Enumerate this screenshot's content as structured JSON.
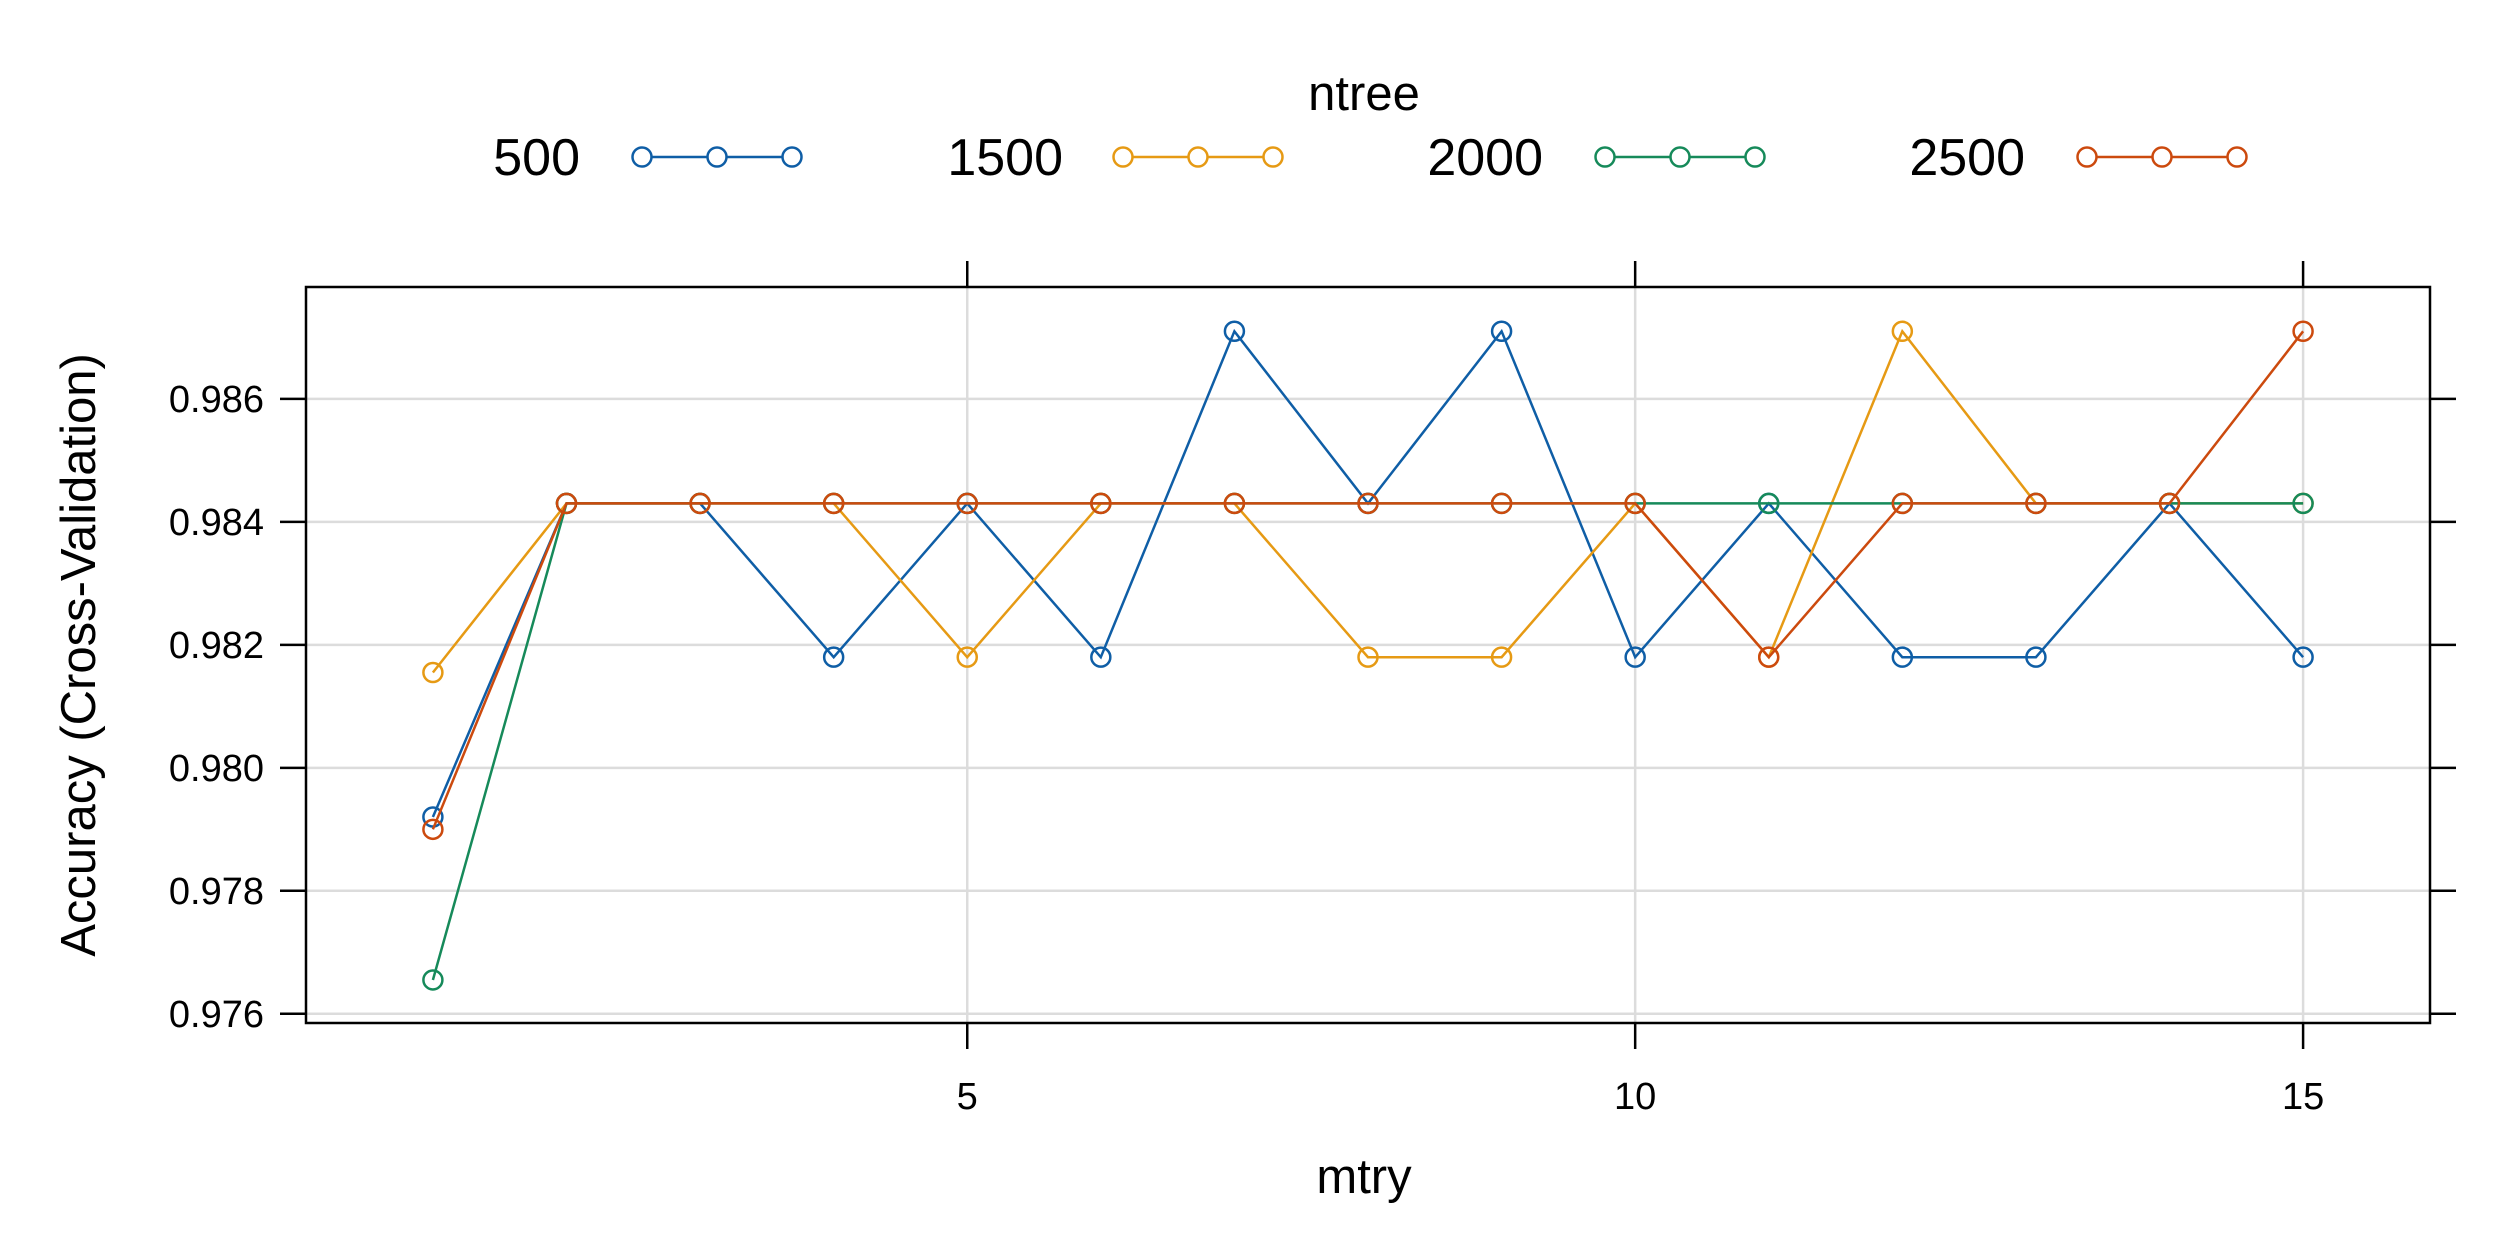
{
  "chart_data": {
    "type": "line",
    "title": "",
    "xlabel": "mtry",
    "ylabel": "Accuracy (Cross-Validation)",
    "legend_title": "ntree",
    "legend_position": "top",
    "grid": true,
    "xlim": [
      0.05,
      15.95
    ],
    "ylim": [
      0.97585,
      0.98782
    ],
    "xticks": [
      5,
      10,
      15
    ],
    "xtick_labels": [
      "5",
      "10",
      "15"
    ],
    "yticks": [
      0.976,
      0.978,
      0.98,
      0.982,
      0.984,
      0.986
    ],
    "ytick_labels": [
      "0.976",
      "0.978",
      "0.980",
      "0.982",
      "0.984",
      "0.986"
    ],
    "x": [
      1,
      2,
      3,
      4,
      5,
      6,
      7,
      8,
      9,
      10,
      11,
      12,
      13,
      14,
      15
    ],
    "series": [
      {
        "name": "500",
        "color": "#0f5ea6",
        "values": [
          0.9792,
          0.9843,
          0.9843,
          0.9818,
          0.9843,
          0.9818,
          0.9871,
          0.9843,
          0.9871,
          0.9818,
          0.9843,
          0.9818,
          0.9818,
          0.9843,
          0.9818
        ]
      },
      {
        "name": "1500",
        "color": "#e69a14",
        "values": [
          0.98155,
          0.9843,
          0.9843,
          0.9843,
          0.9818,
          0.9843,
          0.9843,
          0.9818,
          0.9818,
          0.9843,
          0.9818,
          0.9871,
          0.9843,
          0.9843,
          0.9843
        ]
      },
      {
        "name": "2000",
        "color": "#168a5a",
        "values": [
          0.97655,
          0.9843,
          0.9843,
          0.9843,
          0.9843,
          0.9843,
          0.9843,
          0.9843,
          0.9843,
          0.9843,
          0.9843,
          0.9843,
          0.9843,
          0.9843,
          0.9843
        ]
      },
      {
        "name": "2500",
        "color": "#cc4a0e",
        "values": [
          0.979,
          0.9843,
          0.9843,
          0.9843,
          0.9843,
          0.9843,
          0.9843,
          0.9843,
          0.9843,
          0.9843,
          0.9818,
          0.9843,
          0.9843,
          0.9843,
          0.9871
        ]
      }
    ]
  }
}
